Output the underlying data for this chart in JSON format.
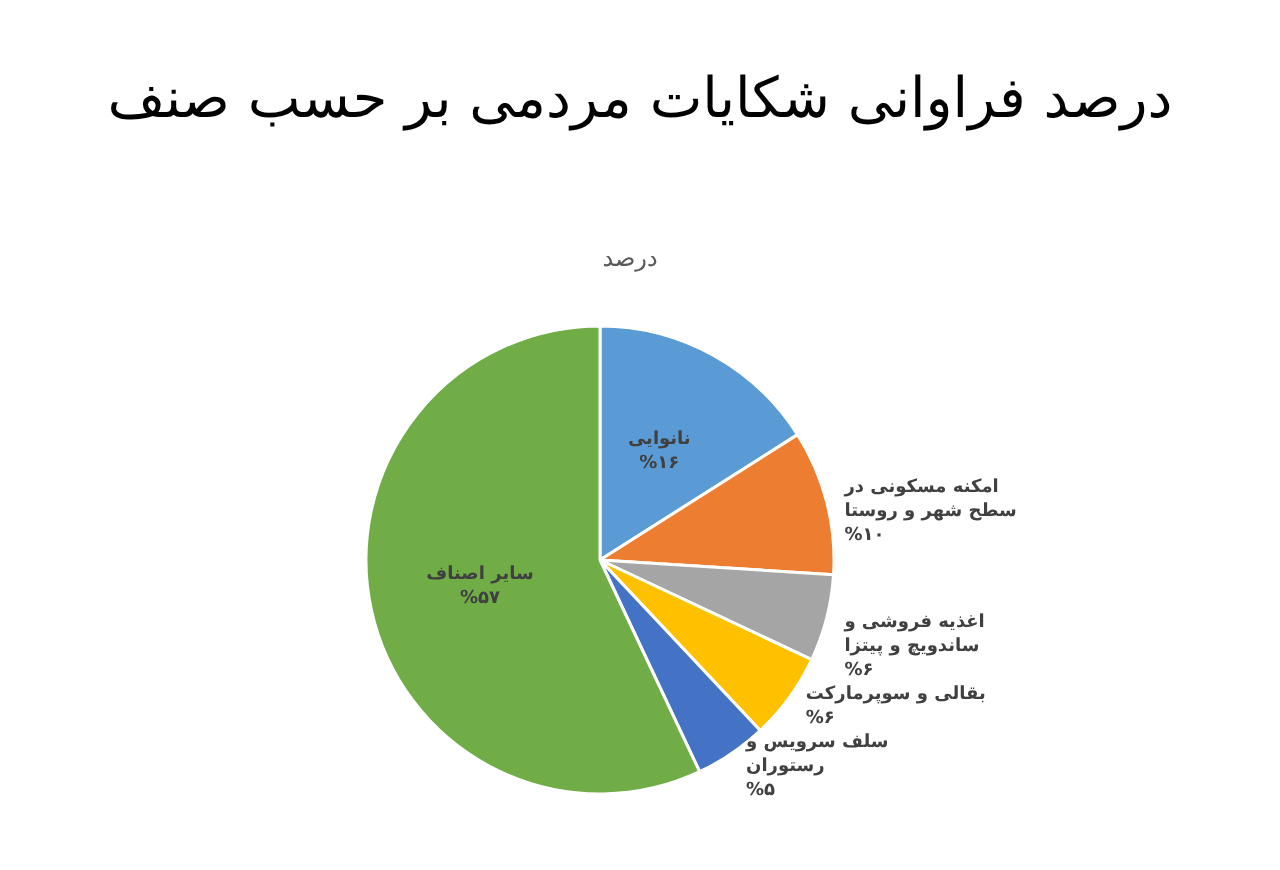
{
  "chart_data": {
    "type": "pie",
    "title": "درصد فراوانی شکایات مردمی بر حسب صنف",
    "subtitle": "درصد",
    "categories": [
      "نانوایی",
      "امکنه مسکونی در سطح شهر و روستا",
      "اغذیه فروشی و ساندویچ و پیتزا",
      "بقالی و سوپرمارکت",
      "سلف سرویس و رستوران",
      "سایر اصناف"
    ],
    "values": [
      16,
      10,
      6,
      6,
      5,
      57
    ],
    "value_labels": [
      "%۱۶",
      "%۱۰",
      "%۶",
      "%۶",
      "%۵",
      "%۵۷"
    ],
    "colors": [
      "#5b9bd5",
      "#ed7d31",
      "#a5a5a5",
      "#ffc000",
      "#4472c4",
      "#70ad47"
    ]
  }
}
